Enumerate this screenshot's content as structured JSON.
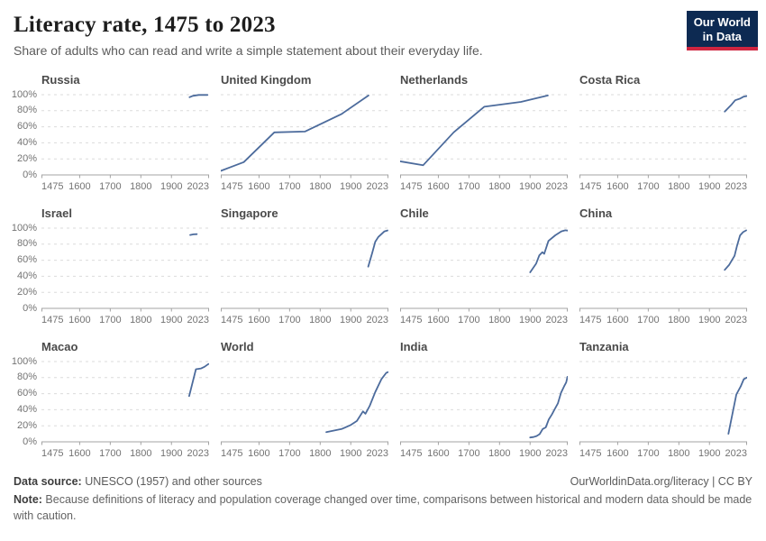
{
  "header": {
    "title": "Literacy rate, 1475 to 2023",
    "subtitle": "Share of adults who can read and write a simple statement about their everyday life.",
    "logo": {
      "line1": "Our World",
      "line2": "in Data"
    }
  },
  "colors": {
    "line": "#4C6B9C",
    "grid": "#DBDBDB",
    "axis": "#A3A3A3",
    "tick_text": "#737373",
    "logo_bg": "#0D2A52",
    "logo_red": "#CF2540"
  },
  "chart_data": {
    "type": "line",
    "layout": "small-multiples-grid-4x3",
    "xlim": [
      1475,
      2023
    ],
    "ylim": [
      0,
      100
    ],
    "x_ticks": [
      1475,
      1600,
      1700,
      1800,
      1900,
      2023
    ],
    "x_tick_labels": [
      "1475",
      "1600",
      "1700",
      "1800",
      "1900",
      "2023"
    ],
    "y_ticks": [
      0,
      20,
      40,
      60,
      80,
      100
    ],
    "y_tick_labels": [
      "0%",
      "20%",
      "40%",
      "60%",
      "80%",
      "100%"
    ],
    "unit": "%",
    "grid": "dashed-horizontal",
    "legend": "none",
    "series": [
      {
        "name": "Russia",
        "points": [
          [
            1959,
            96.8
          ],
          [
            1970,
            98.5
          ],
          [
            1989,
            99.7
          ],
          [
            2018,
            99.7
          ]
        ]
      },
      {
        "name": "United Kingdom",
        "points": [
          [
            1475,
            5
          ],
          [
            1550,
            16
          ],
          [
            1650,
            53
          ],
          [
            1750,
            54
          ],
          [
            1870,
            76
          ],
          [
            1958,
            99
          ]
        ]
      },
      {
        "name": "Netherlands",
        "points": [
          [
            1475,
            17
          ],
          [
            1550,
            12
          ],
          [
            1650,
            53
          ],
          [
            1750,
            85
          ],
          [
            1870,
            91
          ],
          [
            1958,
            99
          ]
        ]
      },
      {
        "name": "Costa Rica",
        "points": [
          [
            1950,
            79
          ],
          [
            1963,
            84
          ],
          [
            1973,
            88
          ],
          [
            1984,
            93
          ],
          [
            2000,
            95
          ],
          [
            2011,
            97.4
          ],
          [
            2022,
            98.3
          ]
        ]
      },
      {
        "name": "Israel",
        "points": [
          [
            1961,
            91.5
          ],
          [
            1972,
            92.3
          ],
          [
            1983,
            92.5
          ]
        ]
      },
      {
        "name": "Singapore",
        "points": [
          [
            1957,
            52
          ],
          [
            1970,
            69
          ],
          [
            1980,
            83
          ],
          [
            1990,
            89
          ],
          [
            2000,
            92.5
          ],
          [
            2010,
            95.9
          ],
          [
            2020,
            97.1
          ]
        ]
      },
      {
        "name": "Chile",
        "points": [
          [
            1900,
            45
          ],
          [
            1920,
            56
          ],
          [
            1930,
            66
          ],
          [
            1940,
            70
          ],
          [
            1946,
            68
          ],
          [
            1960,
            84
          ],
          [
            1982,
            91
          ],
          [
            2002,
            96
          ],
          [
            2015,
            97.3
          ],
          [
            2022,
            97
          ]
        ]
      },
      {
        "name": "China",
        "points": [
          [
            1950,
            48
          ],
          [
            1964,
            54
          ],
          [
            1982,
            65.5
          ],
          [
            1990,
            77.8
          ],
          [
            2000,
            90.9
          ],
          [
            2010,
            95.1
          ],
          [
            2020,
            97.2
          ]
        ]
      },
      {
        "name": "Macao",
        "points": [
          [
            1958,
            57
          ],
          [
            1980,
            90.5
          ],
          [
            1997,
            91.5
          ],
          [
            2008,
            93.5
          ],
          [
            2021,
            97
          ]
        ]
      },
      {
        "name": "World",
        "points": [
          [
            1820,
            12
          ],
          [
            1870,
            16
          ],
          [
            1900,
            21
          ],
          [
            1920,
            26
          ],
          [
            1940,
            38
          ],
          [
            1948,
            35
          ],
          [
            1962,
            45
          ],
          [
            1980,
            62
          ],
          [
            2000,
            78
          ],
          [
            2016,
            86
          ],
          [
            2023,
            87
          ]
        ]
      },
      {
        "name": "India",
        "points": [
          [
            1900,
            5.4
          ],
          [
            1911,
            6
          ],
          [
            1921,
            7.2
          ],
          [
            1931,
            9.5
          ],
          [
            1941,
            16
          ],
          [
            1951,
            18
          ],
          [
            1961,
            28
          ],
          [
            1971,
            34
          ],
          [
            1981,
            41
          ],
          [
            1991,
            48
          ],
          [
            2001,
            61
          ],
          [
            2011,
            69
          ],
          [
            2018,
            74
          ],
          [
            2022,
            81
          ]
        ]
      },
      {
        "name": "Tanzania",
        "points": [
          [
            1962,
            10
          ],
          [
            1988,
            59
          ],
          [
            2002,
            69
          ],
          [
            2012,
            78
          ],
          [
            2022,
            80
          ]
        ]
      }
    ]
  },
  "footer": {
    "source_label": "Data source:",
    "source_text": " UNESCO (1957) and other sources",
    "credit": "OurWorldinData.org/literacy | CC BY",
    "note_label": "Note:",
    "note_text": " Because definitions of literacy and population coverage changed over time, comparisons between historical and modern data should be made with caution."
  }
}
